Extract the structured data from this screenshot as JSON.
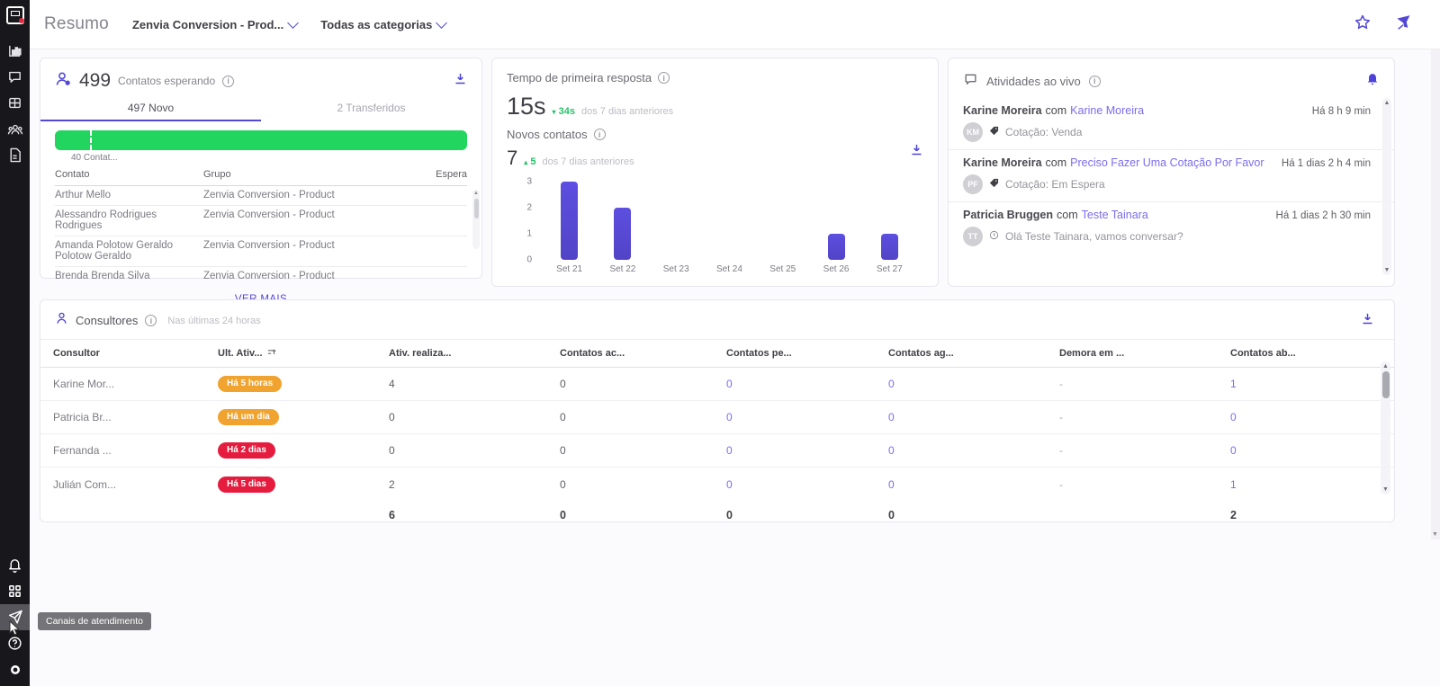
{
  "colors": {
    "accent_purple": "#5348d4",
    "link_purple": "#7a6cf0",
    "green_bar": "#21d55f",
    "delta_green": "#27c26a",
    "badge_orange": "#f0a32f",
    "badge_red": "#e51c3e",
    "sidebar_bg": "#18171b"
  },
  "sidebar": {
    "tooltip": "Canais de atendimento",
    "top_icons": [
      "bar-chart",
      "chat",
      "table",
      "team",
      "document"
    ],
    "bottom_icons": [
      "bell",
      "apps",
      "send-channels",
      "help",
      "status-dot"
    ]
  },
  "header": {
    "title": "Resumo",
    "account_dropdown": "Zenvia Conversion - Prod...",
    "category_dropdown": "Todas as categorias"
  },
  "waiting": {
    "count": "499",
    "label": "Contatos esperando",
    "tab_new": "497 Novo",
    "tab_transferred": "2 Transferidos",
    "bar_marker_label": "40 Contat...",
    "col_contato": "Contato",
    "col_grupo": "Grupo",
    "col_espera": "Espera",
    "rows": [
      {
        "contato": "Arthur Mello",
        "grupo": "Zenvia Conversion - Product"
      },
      {
        "contato": "Alessandro Rodrigues Rodrigues",
        "grupo": "Zenvia Conversion - Product"
      },
      {
        "contato": "Amanda Polotow Geraldo Polotow Geraldo",
        "grupo": "Zenvia Conversion - Product"
      },
      {
        "contato": "Brenda Brenda Silva",
        "grupo": "Zenvia Conversion - Product"
      }
    ],
    "ver_mais": "VER MAIS"
  },
  "response": {
    "title": "Tempo de primeira resposta",
    "value": "15s",
    "delta": "34s",
    "delta_note": "dos 7 dias anteriores",
    "subtitle": "Novos contatos",
    "sub_value": "7",
    "sub_delta": "5",
    "sub_delta_note": "dos 7 dias anteriores"
  },
  "chart_data": {
    "type": "bar",
    "title": "Novos contatos",
    "categories": [
      "Set 21",
      "Set 22",
      "Set 23",
      "Set 24",
      "Set 25",
      "Set 26",
      "Set 27"
    ],
    "values": [
      3,
      2,
      0,
      0,
      0,
      1,
      1
    ],
    "yticks": [
      0,
      1,
      2,
      3
    ],
    "ylim": [
      0,
      3.3
    ],
    "xlabel": "",
    "ylabel": "",
    "grid": false,
    "legend": false,
    "bar_color": "#5a49d8"
  },
  "activities": {
    "title": "Atividades ao vivo",
    "items": [
      {
        "agent": "Karine Moreira",
        "sep": "com",
        "contact": "Karine Moreira",
        "time": "Há 8 h 9 min",
        "initials": "KM",
        "detail": "Cotação: Venda",
        "detail_icon": "tag"
      },
      {
        "agent": "Karine Moreira",
        "sep": "com",
        "contact": "Preciso Fazer Uma Cotação Por Favor",
        "time": "Há 1 dias 2 h 4 min",
        "initials": "PF",
        "detail": "Cotação: Em Espera",
        "detail_icon": "tag"
      },
      {
        "agent": "Patricia Bruggen",
        "sep": "com",
        "contact": "Teste Tainara",
        "time": "Há 1 dias 2 h 30 min",
        "initials": "TT",
        "detail": "Olá Teste Tainara, vamos conversar?",
        "detail_icon": "clock"
      }
    ]
  },
  "consultants": {
    "title": "Consultores",
    "subtitle": "Nas últimas 24 horas",
    "headers": [
      "Consultor",
      "Ult. Ativ...",
      "Ativ. realiza...",
      "Contatos ac...",
      "Contatos pe...",
      "Contatos ag...",
      "Demora em ...",
      "Contatos ab..."
    ],
    "rows": [
      {
        "name": "Karine Mor...",
        "badge": "Há 5 horas",
        "badge_color": "orange",
        "ativ": "4",
        "ac": "0",
        "pe": "0",
        "ag": "0",
        "demora": "-",
        "ab": "1"
      },
      {
        "name": "Patricia Br...",
        "badge": "Há um dia",
        "badge_color": "orange",
        "ativ": "0",
        "ac": "0",
        "pe": "0",
        "ag": "0",
        "demora": "-",
        "ab": "0"
      },
      {
        "name": "Fernanda ...",
        "badge": "Há 2 dias",
        "badge_color": "red",
        "ativ": "0",
        "ac": "0",
        "pe": "0",
        "ag": "0",
        "demora": "-",
        "ab": "0"
      },
      {
        "name": "Julián Com...",
        "badge": "Há 5 dias",
        "badge_color": "red",
        "ativ": "2",
        "ac": "0",
        "pe": "0",
        "ag": "0",
        "demora": "-",
        "ab": "1"
      }
    ],
    "totals": {
      "ativ": "6",
      "ac": "0",
      "pe": "0",
      "ag": "0",
      "ab": "2"
    }
  }
}
